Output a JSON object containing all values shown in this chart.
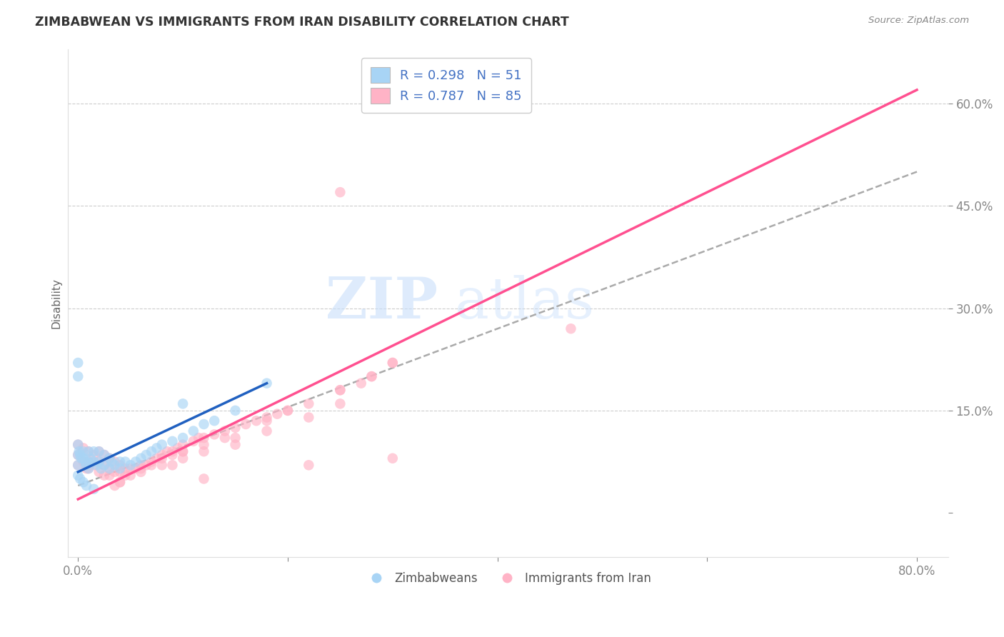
{
  "title": "ZIMBABWEAN VS IMMIGRANTS FROM IRAN DISABILITY CORRELATION CHART",
  "source": "Source: ZipAtlas.com",
  "ylabel": "Disability",
  "xlim": [
    -0.01,
    0.83
  ],
  "ylim": [
    -0.065,
    0.68
  ],
  "legend_labels": [
    "Zimbabweans",
    "Immigrants from Iran"
  ],
  "blue_color": "#A8D4F5",
  "pink_color": "#FFB3C6",
  "blue_line_color": "#2060C0",
  "pink_line_color": "#FF5090",
  "dashed_line_color": "#AAAAAA",
  "R_blue": 0.298,
  "N_blue": 51,
  "R_pink": 0.787,
  "N_pink": 85,
  "zimbabwean_x": [
    0.0,
    0.0,
    0.0,
    0.0,
    0.0,
    0.001,
    0.002,
    0.003,
    0.005,
    0.005,
    0.007,
    0.008,
    0.01,
    0.01,
    0.01,
    0.012,
    0.015,
    0.015,
    0.018,
    0.02,
    0.02,
    0.022,
    0.025,
    0.025,
    0.03,
    0.03,
    0.032,
    0.035,
    0.04,
    0.04,
    0.045,
    0.05,
    0.055,
    0.06,
    0.065,
    0.07,
    0.075,
    0.08,
    0.09,
    0.1,
    0.11,
    0.12,
    0.13,
    0.15,
    0.0,
    0.002,
    0.005,
    0.008,
    0.015,
    0.1,
    0.18
  ],
  "zimbabwean_y": [
    0.22,
    0.2,
    0.1,
    0.085,
    0.07,
    0.09,
    0.085,
    0.08,
    0.09,
    0.08,
    0.075,
    0.07,
    0.09,
    0.075,
    0.065,
    0.08,
    0.09,
    0.075,
    0.07,
    0.09,
    0.075,
    0.065,
    0.085,
    0.07,
    0.08,
    0.065,
    0.075,
    0.07,
    0.075,
    0.065,
    0.075,
    0.07,
    0.075,
    0.08,
    0.085,
    0.09,
    0.095,
    0.1,
    0.105,
    0.11,
    0.12,
    0.13,
    0.135,
    0.15,
    0.055,
    0.05,
    0.045,
    0.04,
    0.035,
    0.16,
    0.19
  ],
  "iran_x": [
    0.0,
    0.0,
    0.0,
    0.005,
    0.005,
    0.008,
    0.01,
    0.01,
    0.01,
    0.015,
    0.015,
    0.02,
    0.02,
    0.02,
    0.025,
    0.025,
    0.025,
    0.03,
    0.03,
    0.03,
    0.035,
    0.035,
    0.04,
    0.04,
    0.04,
    0.045,
    0.045,
    0.05,
    0.055,
    0.06,
    0.065,
    0.07,
    0.075,
    0.08,
    0.085,
    0.09,
    0.095,
    0.1,
    0.1,
    0.11,
    0.115,
    0.12,
    0.13,
    0.14,
    0.15,
    0.16,
    0.17,
    0.18,
    0.19,
    0.2,
    0.22,
    0.25,
    0.27,
    0.28,
    0.3,
    0.05,
    0.06,
    0.07,
    0.08,
    0.09,
    0.1,
    0.12,
    0.14,
    0.18,
    0.2,
    0.25,
    0.28,
    0.3,
    0.25,
    0.22,
    0.18,
    0.15,
    0.12,
    0.1,
    0.08,
    0.06,
    0.04,
    0.035,
    0.09,
    0.15,
    0.47,
    0.3,
    0.12,
    0.22,
    0.25
  ],
  "iran_y": [
    0.1,
    0.085,
    0.07,
    0.095,
    0.075,
    0.065,
    0.09,
    0.075,
    0.065,
    0.085,
    0.07,
    0.09,
    0.075,
    0.06,
    0.085,
    0.07,
    0.055,
    0.08,
    0.065,
    0.055,
    0.075,
    0.06,
    0.07,
    0.06,
    0.045,
    0.065,
    0.055,
    0.065,
    0.065,
    0.07,
    0.07,
    0.075,
    0.08,
    0.085,
    0.09,
    0.09,
    0.095,
    0.1,
    0.09,
    0.105,
    0.11,
    0.11,
    0.115,
    0.12,
    0.125,
    0.13,
    0.135,
    0.14,
    0.145,
    0.15,
    0.16,
    0.18,
    0.19,
    0.2,
    0.22,
    0.055,
    0.065,
    0.07,
    0.08,
    0.085,
    0.09,
    0.1,
    0.11,
    0.135,
    0.15,
    0.18,
    0.2,
    0.22,
    0.16,
    0.14,
    0.12,
    0.11,
    0.09,
    0.08,
    0.07,
    0.06,
    0.045,
    0.04,
    0.07,
    0.1,
    0.27,
    0.08,
    0.05,
    0.07,
    0.47
  ],
  "iran_line_x0": 0.0,
  "iran_line_y0": 0.02,
  "iran_line_x1": 0.8,
  "iran_line_y1": 0.62,
  "blue_line_x0": 0.0,
  "blue_line_y0": 0.06,
  "blue_line_x1": 0.18,
  "blue_line_y1": 0.19,
  "dash_line_x0": 0.0,
  "dash_line_y0": 0.04,
  "dash_line_x1": 0.8,
  "dash_line_y1": 0.5
}
